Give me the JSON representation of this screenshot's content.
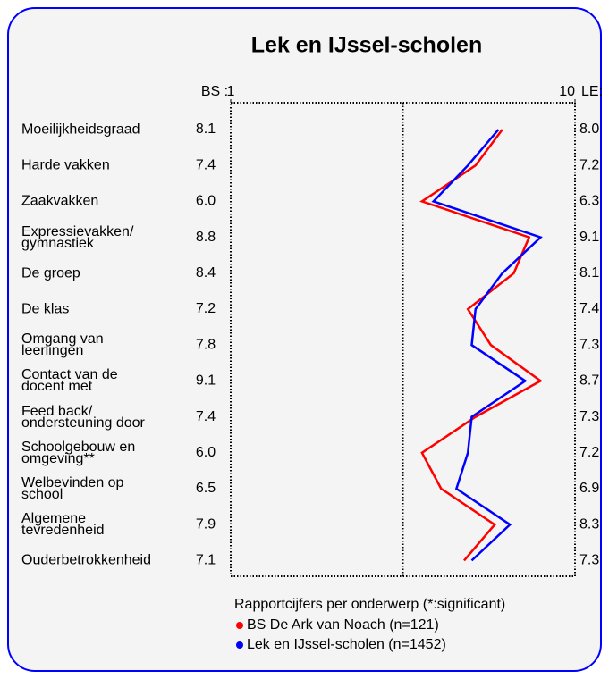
{
  "chart_data": {
    "type": "profile_line",
    "title": "Lek en IJssel-scholen",
    "column_labels": [
      "BS :",
      "LE:"
    ],
    "subtitle": "Rapportcijfers per onderwerp (*:significant)",
    "categories": [
      "Moeilijkheidsgraad",
      "Harde vakken",
      "Zaakvakken",
      "Expressievakken/\ngymnastiek",
      "De groep",
      "De klas",
      "Omgang van\nleerlingen",
      "Contact van de\ndocent met",
      "Feed back/\nondersteuning door",
      "Schoolgebouw en\nomgeving**",
      "Welbevinden op\nschool",
      "Algemene\ntevredenheid",
      "Ouderbetrokkenheid"
    ],
    "xlim": [
      1,
      10
    ],
    "xticks": [
      1,
      10
    ],
    "series": [
      {
        "name": "BS De Ark van Noach (n=121)",
        "color": "#ff0000",
        "values": [
          8.1,
          7.4,
          6.0,
          8.8,
          8.4,
          7.2,
          7.8,
          9.1,
          7.4,
          6.0,
          6.5,
          7.9,
          7.1
        ],
        "value_labels": [
          "8.1",
          "7.4",
          "6.0",
          "8.8",
          "8.4",
          "7.2",
          "7.8",
          "9.1",
          "7.4",
          "6.0",
          "6.5",
          "7.9",
          "7.1"
        ]
      },
      {
        "name": "Lek en IJssel-scholen (n=1452)",
        "color": "#0000ff",
        "values": [
          8.0,
          7.2,
          6.3,
          9.1,
          8.1,
          7.4,
          7.3,
          8.7,
          7.3,
          7.2,
          6.9,
          8.3,
          7.3
        ],
        "value_labels": [
          "8.0",
          "7.2",
          "6.3",
          "9.1",
          "8.1",
          "7.4",
          "7.3",
          "8.7",
          "7.3",
          "7.2",
          "6.9",
          "8.3",
          "7.3"
        ]
      }
    ]
  }
}
